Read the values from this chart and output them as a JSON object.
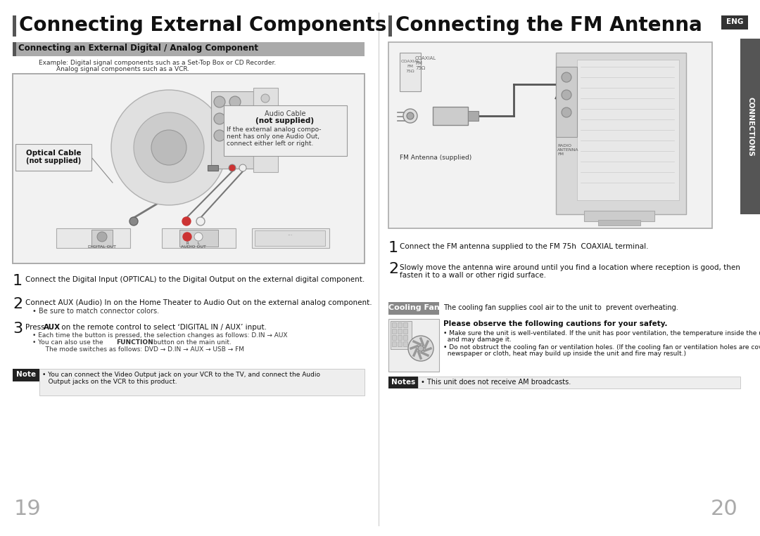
{
  "left_title": "Connecting External Components",
  "right_title": "Connecting the FM Antenna",
  "eng_label": "ENG",
  "section_header_left": "Connecting an External Digital / Analog Component",
  "cooling_fan_label": "Cooling Fan",
  "cooling_fan_text": "The cooling fan supplies cool air to the unit to  prevent overheating.",
  "example_text1": "Example: Digital signal components such as a Set-Top Box or CD Recorder.",
  "example_text2": "Analog signal components such as a VCR.",
  "opt_cable_label1": "Optical Cable",
  "opt_cable_label2": "(not supplied)",
  "audio_cable_label1": "Audio Cable",
  "audio_cable_label2": "(not supplied)",
  "audio_cable_label3": "If the external analog compo-\nnent has only one Audio Out,\nconnect either left or right.",
  "step1_left": "Connect the Digital Input (OPTICAL) to the Digital Output on the external digital component.",
  "step2_left": "Connect AUX (Audio) In on the Home Theater to Audio Out on the external analog component.",
  "step2_bullet": "• Be sure to match connector colors.",
  "step3_intro_pre": "Press ",
  "step3_intro_bold": "AUX",
  "step3_intro_post": " on the remote control to select ‘DIGITAL IN / AUX’ input.",
  "step3_bullet1": "• Each time the button is pressed, the selection changes as follows: D.IN → AUX",
  "step3_bullet2_pre": "• You can also use the ",
  "step3_bullet2_bold": "FUNCTION",
  "step3_bullet2_post": " button on the main unit.",
  "step3_bullet3": "   The mode switches as follows: DVD → D.IN → AUX → USB → FM",
  "note_label": "Note",
  "note_text": "• You can connect the Video Output jack on your VCR to the TV, and connect the Audio\n   Output jacks on the VCR to this product.",
  "step1_right": "Connect the FM antenna supplied to the FM 75h  COAXIAL terminal.",
  "step2_right_l1": "Slowly move the antenna wire around until you find a location where reception is good, then",
  "step2_right_l2": "fasten it to a wall or other rigid surface.",
  "cooling_safety_title": "Please observe the following cautions for your safety.",
  "cooling_bullet1_l1": "• Make sure the unit is well-ventilated. If the unit has poor ventilation, the temperature inside the unit could rise",
  "cooling_bullet1_l2": "  and may damage it.",
  "cooling_bullet2_l1": "• Do not obstruct the cooling fan or ventilation holes. (If the cooling fan or ventilation holes are covered with a",
  "cooling_bullet2_l2": "  newspaper or cloth, heat may build up inside the unit and fire may result.)",
  "notes_label": "Notes",
  "notes_text": "• This unit does not receive AM broadcasts.",
  "connections_sidebar": "CONNECTIONS",
  "page_left": "19",
  "page_right": "20",
  "bg_color": "#ffffff",
  "title_bar_color": "#555555",
  "section_bg": "#aaaaaa",
  "section_bar": "#555555",
  "note_label_bg": "#222222",
  "notes_label_bg": "#222222",
  "cooling_label_bg": "#666666",
  "sidebar_bg": "#555555",
  "diagram_bg": "#f2f2f2",
  "diagram_border": "#aaaaaa"
}
